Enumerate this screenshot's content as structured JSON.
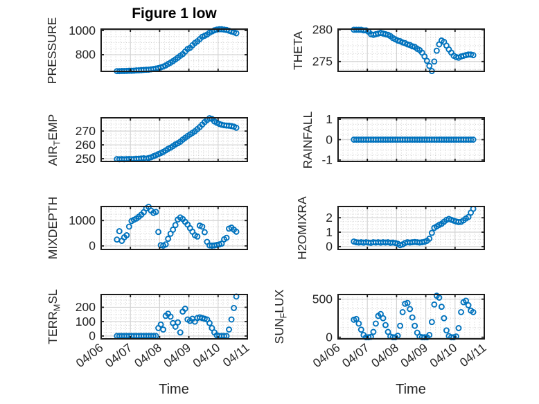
{
  "figure": {
    "title": "Figure 1 low",
    "xlabel": "Time",
    "colors": {
      "marker": "#0072BD",
      "box": "#1c1c1c",
      "grid_major": "#d4d4d4",
      "grid_minor": "#cccccc",
      "tick_text": "#262626",
      "title_text": "#000000",
      "background": "#ffffff"
    }
  },
  "chart_data": {
    "type": "scatter",
    "title": "Figure 1 low",
    "xlabel": "Time",
    "x_unit": "days since 04/06 00:00",
    "xlim": [
      0,
      5
    ],
    "xtick_values": [
      0,
      1,
      2,
      3,
      4,
      5
    ],
    "xtick_labels": [
      "04/06",
      "04/07",
      "04/08",
      "04/09",
      "04/10",
      "04/11"
    ],
    "xtick_labels_only_bottom_row": true,
    "grid": "major solid + minor dotted",
    "marker": "open-circle",
    "x": [
      0.54,
      0.623,
      0.707,
      0.79,
      0.873,
      0.957,
      1.04,
      1.123,
      1.207,
      1.29,
      1.373,
      1.457,
      1.54,
      1.623,
      1.707,
      1.79,
      1.873,
      1.957,
      2.04,
      2.123,
      2.207,
      2.29,
      2.373,
      2.457,
      2.54,
      2.623,
      2.707,
      2.79,
      2.873,
      2.957,
      3.04,
      3.123,
      3.207,
      3.29,
      3.373,
      3.457,
      3.54,
      3.623,
      3.707,
      3.79,
      3.873,
      3.957,
      4.04,
      4.123,
      4.207,
      4.29,
      4.373,
      4.457,
      4.54,
      4.623
    ],
    "plots": [
      {
        "name": "PRESSURE",
        "ylabel_pre": "PRESSURE",
        "ylabel_sub": "",
        "ylabel_post": "",
        "yticks": [
          800,
          1000
        ],
        "ylim": [
          662,
          1012
        ],
        "values": [
          664,
          664,
          665,
          665,
          666,
          667,
          667,
          668,
          670,
          671,
          672,
          674,
          675,
          676,
          679,
          682,
          685,
          689,
          695,
          702,
          711,
          723,
          734,
          747,
          761,
          775,
          791,
          805,
          826,
          847,
          857,
          878,
          897,
          911,
          929,
          948,
          957,
          967,
          982,
          993,
          1002,
          1008,
          1011,
          1011,
          1008,
          1005,
          999,
          992,
          986,
          978
        ]
      },
      {
        "name": "THETA",
        "ylabel_pre": "THETA",
        "ylabel_sub": "",
        "ylabel_post": "",
        "yticks": [
          275,
          280
        ],
        "ylim": [
          273.45,
          280.1
        ],
        "values": [
          280,
          280,
          280,
          280,
          279.9,
          279.9,
          279.7,
          279.3,
          279.2,
          279.3,
          279.4,
          279.5,
          279.4,
          279.3,
          279.2,
          279,
          278.7,
          278.5,
          278.3,
          278.2,
          278,
          277.9,
          277.7,
          277.6,
          277.4,
          277.3,
          277,
          276.8,
          276.4,
          275.8,
          275.1,
          274.3,
          273.5,
          275,
          276.7,
          277.7,
          278.3,
          278.1,
          277.5,
          276.9,
          276.4,
          275.9,
          275.7,
          275.6,
          275.8,
          275.9,
          276,
          276.1,
          276.1,
          276
        ]
      },
      {
        "name": "AIR_TEMP",
        "ylabel_pre": "AIR",
        "ylabel_sub": "T",
        "ylabel_post": "EMP",
        "yticks": [
          250,
          260,
          270
        ],
        "ylim": [
          248,
          279.6
        ],
        "values": [
          249.7,
          249.6,
          249.7,
          249.6,
          249.7,
          249.8,
          249.7,
          249.8,
          249.9,
          250,
          250.1,
          250.3,
          250,
          250.5,
          251,
          251.8,
          252.5,
          253.3,
          254.1,
          254.9,
          256,
          257.1,
          258,
          259.1,
          260.3,
          261.2,
          262.3,
          263.8,
          265.1,
          266.4,
          267.6,
          268.7,
          269.9,
          271.4,
          272.9,
          274.7,
          276.5,
          278,
          279.3,
          278.8,
          277,
          276,
          275.2,
          274.6,
          274.2,
          274,
          273.9,
          273.6,
          273.2,
          272.4
        ]
      },
      {
        "name": "RAINFALL",
        "ylabel_pre": "RAINFALL",
        "ylabel_sub": "",
        "ylabel_post": "",
        "yticks": [
          -1,
          0,
          1
        ],
        "ylim": [
          -1.07,
          1.07
        ],
        "values": [
          0,
          0,
          0,
          0,
          0,
          0,
          0,
          0,
          0,
          0,
          0,
          0,
          0,
          0,
          0,
          0,
          0,
          0,
          0,
          0,
          0,
          0,
          0,
          0,
          0,
          0,
          0,
          0,
          0,
          0,
          0,
          0,
          0,
          0,
          0,
          0,
          0,
          0,
          0,
          0,
          0,
          0,
          0,
          0,
          0,
          0,
          0,
          0,
          0,
          0
        ]
      },
      {
        "name": "MIXDEPTH",
        "ylabel_pre": "MIXDEPTH",
        "ylabel_sub": "",
        "ylabel_post": "",
        "yticks": [
          0,
          1000
        ],
        "ylim": [
          -140,
          1553
        ],
        "values": [
          250,
          580,
          200,
          340,
          420,
          760,
          980,
          1030,
          1080,
          1150,
          1230,
          1330,
          1480,
          1540,
          1390,
          1300,
          1340,
          550,
          30,
          10,
          60,
          280,
          480,
          640,
          820,
          1040,
          1120,
          1060,
          950,
          840,
          700,
          560,
          420,
          370,
          800,
          760,
          540,
          160,
          20,
          10,
          20,
          40,
          60,
          90,
          260,
          320,
          680,
          720,
          640,
          560
        ]
      },
      {
        "name": "H2OMIXRA",
        "ylabel_pre": "H2OMIXRA",
        "ylabel_sub": "",
        "ylabel_post": "",
        "yticks": [
          0,
          1,
          2
        ],
        "ylim": [
          -0.2,
          2.78
        ],
        "values": [
          0.35,
          0.3,
          0.28,
          0.3,
          0.27,
          0.3,
          0.28,
          0.26,
          0.3,
          0.28,
          0.3,
          0.27,
          0.3,
          0.28,
          0.3,
          0.26,
          0.28,
          0.25,
          0.2,
          0.1,
          0.15,
          0.25,
          0.3,
          0.28,
          0.3,
          0.32,
          0.3,
          0.28,
          0.3,
          0.33,
          0.4,
          0.55,
          0.95,
          1.3,
          1.4,
          1.5,
          1.58,
          1.72,
          1.85,
          1.92,
          1.86,
          1.8,
          1.74,
          1.7,
          1.72,
          1.82,
          1.95,
          2.05,
          2.35,
          2.62
        ]
      },
      {
        "name": "TERR_MSL",
        "ylabel_pre": "TERR",
        "ylabel_sub": "M",
        "ylabel_post": "SL",
        "yticks": [
          0,
          100,
          200
        ],
        "ylim": [
          -20,
          289
        ],
        "values": [
          0,
          0,
          0,
          0,
          0,
          0,
          0,
          0,
          0,
          0,
          0,
          0,
          0,
          0,
          0,
          0,
          0,
          55,
          80,
          45,
          140,
          155,
          135,
          90,
          65,
          95,
          25,
          170,
          190,
          115,
          105,
          120,
          100,
          125,
          130,
          125,
          120,
          115,
          90,
          55,
          25,
          5,
          0,
          0,
          0,
          0,
          45,
          115,
          195,
          275
        ]
      },
      {
        "name": "SUN_FLUX",
        "ylabel_pre": "SUN",
        "ylabel_sub": "F",
        "ylabel_post": "LUX",
        "yticks": [
          0,
          500
        ],
        "ylim": [
          -21,
          561
        ],
        "values": [
          230,
          240,
          180,
          100,
          30,
          0,
          0,
          5,
          70,
          180,
          280,
          305,
          250,
          160,
          70,
          10,
          0,
          0,
          20,
          150,
          330,
          440,
          450,
          370,
          260,
          150,
          60,
          10,
          0,
          0,
          0,
          30,
          200,
          430,
          545,
          520,
          400,
          250,
          90,
          15,
          0,
          0,
          10,
          120,
          330,
          460,
          480,
          420,
          350,
          330
        ]
      }
    ]
  }
}
